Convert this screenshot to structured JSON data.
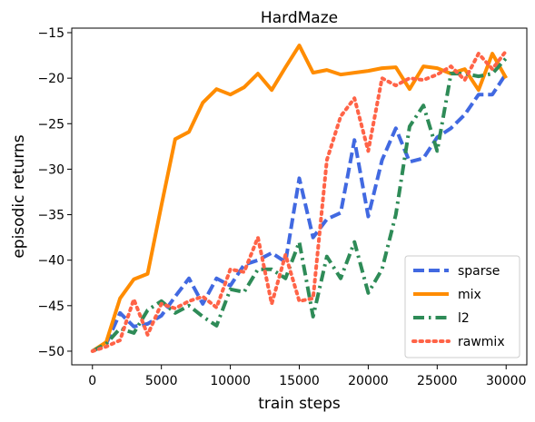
{
  "chart_data": {
    "type": "line",
    "title": "HardMaze",
    "xlabel": "train steps",
    "ylabel": "episodic returns",
    "xlim": [
      -1500,
      31500
    ],
    "ylim": [
      -51.5,
      -14.5
    ],
    "xticks": [
      0,
      5000,
      10000,
      15000,
      20000,
      25000,
      30000
    ],
    "xtick_labels": [
      "0",
      "5000",
      "10000",
      "15000",
      "20000",
      "25000",
      "30000"
    ],
    "yticks": [
      -50,
      -45,
      -40,
      -35,
      -30,
      -25,
      -20,
      -15
    ],
    "ytick_labels": [
      "−50",
      "−45",
      "−40",
      "−35",
      "−30",
      "−25",
      "−20",
      "−15"
    ],
    "grid": false,
    "legend_position": "lower-right",
    "series": [
      {
        "name": "sparse",
        "color": "#4169e1",
        "style": "dashed",
        "x": [
          0,
          1000,
          2000,
          3000,
          4000,
          5000,
          6000,
          7000,
          8000,
          9000,
          10000,
          11000,
          12000,
          13000,
          14000,
          15000,
          16000,
          17000,
          18000,
          19000,
          20000,
          21000,
          22000,
          23000,
          24000,
          25000,
          26000,
          27000,
          28000,
          29000,
          30000
        ],
        "y": [
          -50,
          -49.2,
          -45.8,
          -47.3,
          -47.0,
          -46.1,
          -44.0,
          -42.0,
          -44.8,
          -42.0,
          -42.8,
          -40.5,
          -40.0,
          -39.2,
          -40.2,
          -31.0,
          -37.5,
          -35.5,
          -34.8,
          -26.8,
          -35.2,
          -29.0,
          -25.5,
          -29.2,
          -28.8,
          -26.5,
          -25.5,
          -24.0,
          -21.8,
          -21.8,
          -19.5
        ]
      },
      {
        "name": "mix",
        "color": "#ff8c00",
        "style": "solid",
        "x": [
          0,
          1000,
          2000,
          3000,
          4000,
          5000,
          6000,
          7000,
          8000,
          9000,
          10000,
          11000,
          12000,
          13000,
          14000,
          15000,
          16000,
          17000,
          18000,
          19000,
          20000,
          21000,
          22000,
          23000,
          24000,
          25000,
          26000,
          27000,
          28000,
          29000,
          30000
        ],
        "y": [
          -50,
          -49.0,
          -44.2,
          -42.1,
          -41.5,
          -34.0,
          -26.7,
          -25.9,
          -22.7,
          -21.2,
          -21.8,
          -21.0,
          -19.5,
          -21.3,
          -18.8,
          -16.4,
          -19.4,
          -19.1,
          -19.6,
          -19.4,
          -19.2,
          -18.9,
          -18.8,
          -21.2,
          -18.7,
          -18.9,
          -19.5,
          -19.0,
          -21.3,
          -17.3,
          -20.0
        ]
      },
      {
        "name": "l2",
        "color": "#2e8b57",
        "style": "dashdot",
        "x": [
          0,
          1000,
          2000,
          3000,
          4000,
          5000,
          6000,
          7000,
          8000,
          9000,
          10000,
          11000,
          12000,
          13000,
          14000,
          15000,
          16000,
          17000,
          18000,
          19000,
          20000,
          21000,
          22000,
          23000,
          24000,
          25000,
          26000,
          27000,
          28000,
          29000,
          30000
        ],
        "y": [
          -50,
          -49.2,
          -47.5,
          -48.0,
          -45.5,
          -44.5,
          -45.8,
          -45.0,
          -46.2,
          -47.2,
          -43.2,
          -43.5,
          -41.0,
          -41.0,
          -42.0,
          -38.0,
          -46.2,
          -39.6,
          -42.0,
          -38.0,
          -43.6,
          -41.0,
          -35.0,
          -25.3,
          -23.0,
          -28.0,
          -19.5,
          -19.5,
          -19.8,
          -19.5,
          -17.8
        ]
      },
      {
        "name": "rawmix",
        "color": "#ff6347",
        "style": "dotted",
        "x": [
          0,
          1000,
          2000,
          3000,
          4000,
          5000,
          6000,
          7000,
          8000,
          9000,
          10000,
          11000,
          12000,
          13000,
          14000,
          15000,
          16000,
          17000,
          18000,
          19000,
          20000,
          21000,
          22000,
          23000,
          24000,
          25000,
          26000,
          27000,
          28000,
          29000,
          30000
        ],
        "y": [
          -50,
          -49.5,
          -48.8,
          -44.3,
          -48.2,
          -44.8,
          -45.3,
          -44.5,
          -44.0,
          -45.2,
          -41.0,
          -41.3,
          -37.5,
          -44.8,
          -39.4,
          -44.5,
          -44.2,
          -29.0,
          -24.2,
          -22.2,
          -28.0,
          -20.0,
          -20.8,
          -20.0,
          -20.2,
          -19.6,
          -18.7,
          -20.2,
          -17.3,
          -19.0,
          -17.0
        ]
      }
    ]
  }
}
